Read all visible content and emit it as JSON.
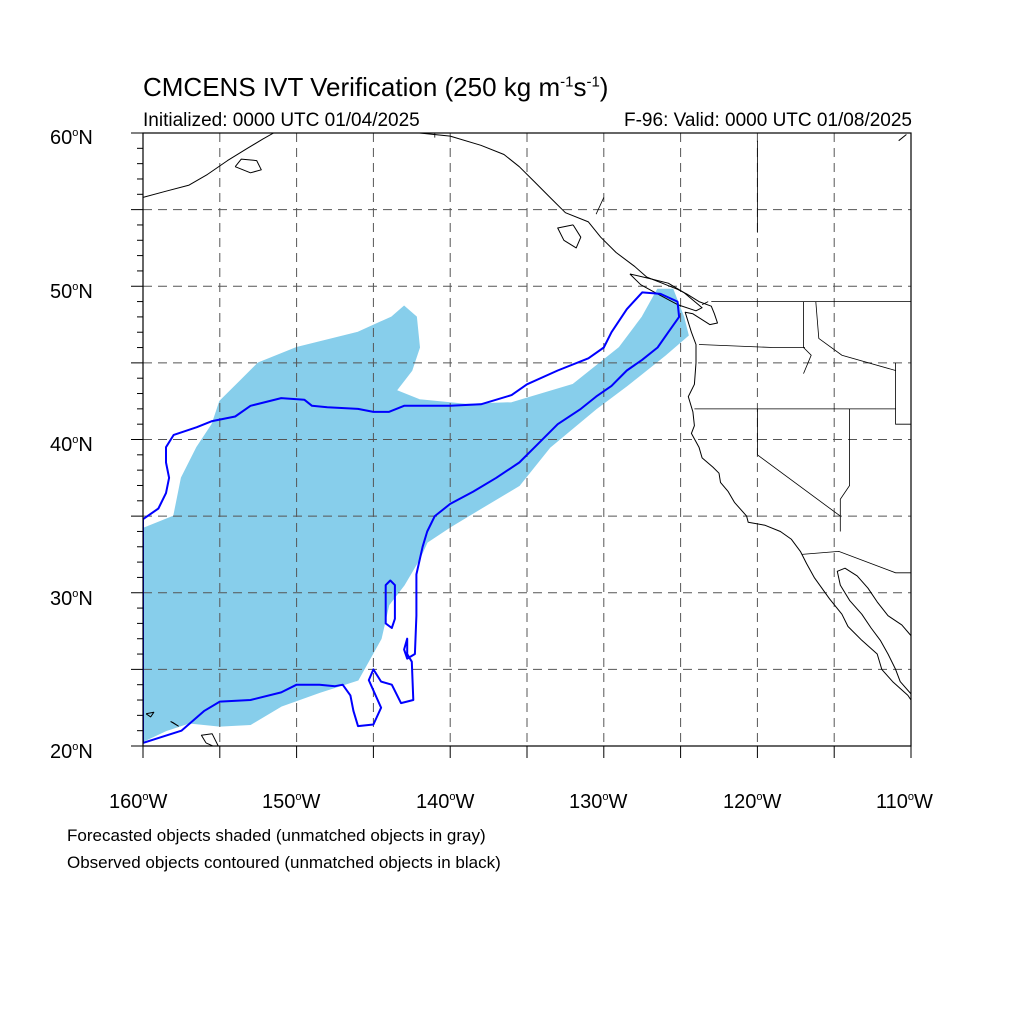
{
  "title": {
    "prefix": "CMCENS IVT Verification (250 kg m",
    "exp1": "-1",
    "mid": "s",
    "exp2": "-1",
    "suffix": ")"
  },
  "initialized": "Initialized: 0000 UTC 01/04/2025",
  "valid": "F-96: Valid: 0000 UTC 01/08/2025",
  "lat_labels": [
    {
      "value": "60",
      "deg": "o",
      "hemi": "N"
    },
    {
      "value": "50",
      "deg": "o",
      "hemi": "N"
    },
    {
      "value": "40",
      "deg": "o",
      "hemi": "N"
    },
    {
      "value": "30",
      "deg": "o",
      "hemi": "N"
    },
    {
      "value": "20",
      "deg": "o",
      "hemi": "N"
    }
  ],
  "lon_labels": [
    {
      "value": "160",
      "deg": "o",
      "hemi": "W"
    },
    {
      "value": "150",
      "deg": "o",
      "hemi": "W"
    },
    {
      "value": "140",
      "deg": "o",
      "hemi": "W"
    },
    {
      "value": "130",
      "deg": "o",
      "hemi": "W"
    },
    {
      "value": "120",
      "deg": "o",
      "hemi": "W"
    },
    {
      "value": "110",
      "deg": "o",
      "hemi": "W"
    }
  ],
  "notes": {
    "forecast": "Forecasted objects shaded (unmatched objects in gray)",
    "observed": "Observed objects contoured (unmatched objects in black)"
  },
  "map_extent": {
    "lon_min": -160,
    "lon_max": -110,
    "lat_min": 20,
    "lat_max": 60
  },
  "colors": {
    "forecast_fill": "#87CEEB",
    "observed_contour": "#0000FF",
    "coastline": "#000000",
    "grid": "#555555"
  },
  "forecast_object": [
    [
      -160,
      20.3
    ],
    [
      -160,
      34.2
    ],
    [
      -158,
      35.0
    ],
    [
      -157.5,
      37.5
    ],
    [
      -156.5,
      39.5
    ],
    [
      -155.5,
      41.0
    ],
    [
      -155,
      42.5
    ],
    [
      -154,
      43.5
    ],
    [
      -152.5,
      45.0
    ],
    [
      -150,
      46.0
    ],
    [
      -148,
      46.5
    ],
    [
      -146,
      47.0
    ],
    [
      -143.8,
      48.0
    ],
    [
      -143,
      48.7
    ],
    [
      -142.2,
      48.0
    ],
    [
      -142,
      46.0
    ],
    [
      -142.5,
      44.5
    ],
    [
      -143.5,
      43.2
    ],
    [
      -142,
      42.6
    ],
    [
      -139,
      42.3
    ],
    [
      -136,
      42.4
    ],
    [
      -132,
      43.6
    ],
    [
      -129,
      46.0
    ],
    [
      -127.5,
      48.0
    ],
    [
      -126.5,
      49.8
    ],
    [
      -125.5,
      49.8
    ],
    [
      -124.8,
      48.0
    ],
    [
      -124.5,
      46.8
    ],
    [
      -126,
      45.5
    ],
    [
      -128.5,
      43.5
    ],
    [
      -130.5,
      42.0
    ],
    [
      -133.5,
      39.5
    ],
    [
      -135.5,
      37.0
    ],
    [
      -138,
      35.5
    ],
    [
      -140,
      34.3
    ],
    [
      -141.5,
      33.3
    ],
    [
      -142,
      32.2
    ],
    [
      -143,
      30.5
    ],
    [
      -144,
      29.2
    ],
    [
      -144.5,
      27.0
    ],
    [
      -146,
      24.3
    ],
    [
      -148.5,
      23.5
    ],
    [
      -151,
      22.6
    ],
    [
      -153,
      21.4
    ],
    [
      -155,
      21.3
    ],
    [
      -157,
      21.5
    ],
    [
      -158.5,
      21.0
    ],
    [
      -160,
      20.3
    ]
  ],
  "observed_objects": [
    [
      [
        -160,
        20.2
      ],
      [
        -160,
        34.8
      ],
      [
        -159,
        35.5
      ],
      [
        -158.5,
        36.5
      ],
      [
        -158.3,
        37.5
      ],
      [
        -158.5,
        38.5
      ],
      [
        -158.5,
        39.5
      ],
      [
        -158.0,
        40.3
      ],
      [
        -156.5,
        40.8
      ],
      [
        -155.5,
        41.2
      ],
      [
        -154,
        41.5
      ],
      [
        -153,
        42.2
      ],
      [
        -151,
        42.7
      ],
      [
        -149.5,
        42.6
      ],
      [
        -149,
        42.2
      ],
      [
        -148,
        42.1
      ],
      [
        -146,
        42.0
      ],
      [
        -145,
        41.8
      ],
      [
        -144,
        41.8
      ],
      [
        -143,
        42.2
      ],
      [
        -140,
        42.2
      ],
      [
        -138,
        42.3
      ],
      [
        -136,
        42.9
      ],
      [
        -135,
        43.6
      ],
      [
        -133,
        44.5
      ],
      [
        -131,
        45.3
      ],
      [
        -130,
        46.0
      ],
      [
        -129.5,
        47.0
      ],
      [
        -128.5,
        48.5
      ],
      [
        -127.5,
        49.6
      ],
      [
        -126.3,
        49.5
      ],
      [
        -125.2,
        49.0
      ],
      [
        -125.1,
        48.0
      ],
      [
        -125.8,
        47.0
      ],
      [
        -126.5,
        46.0
      ],
      [
        -127.5,
        45.2
      ],
      [
        -128.5,
        44.5
      ],
      [
        -129.5,
        43.5
      ],
      [
        -130.5,
        42.8
      ],
      [
        -131.5,
        42.0
      ],
      [
        -133,
        41.0
      ],
      [
        -134.5,
        39.5
      ],
      [
        -135.5,
        38.5
      ],
      [
        -137,
        37.5
      ],
      [
        -138.5,
        36.6
      ],
      [
        -140,
        35.8
      ],
      [
        -141,
        35.0
      ],
      [
        -141.5,
        34.0
      ],
      [
        -141.8,
        33.0
      ],
      [
        -142.2,
        31.2
      ],
      [
        -142.2,
        28.5
      ],
      [
        -142.3,
        26.0
      ],
      [
        -142.8,
        25.7
      ],
      [
        -143.0,
        26.3
      ],
      [
        -142.8,
        27.0
      ],
      [
        -142.8,
        26.0
      ],
      [
        -142.5,
        25.5
      ],
      [
        -142.4,
        23.0
      ],
      [
        -143.2,
        22.8
      ],
      [
        -143.8,
        24.0
      ],
      [
        -144.5,
        24.2
      ],
      [
        -145,
        25.0
      ],
      [
        -145.3,
        24.3
      ],
      [
        -144.5,
        22.5
      ],
      [
        -145,
        21.4
      ],
      [
        -146,
        21.3
      ],
      [
        -146.3,
        22.3
      ],
      [
        -146.5,
        23.3
      ],
      [
        -147,
        24.0
      ],
      [
        -147.5,
        23.9
      ],
      [
        -148.5,
        24.0
      ],
      [
        -150,
        24.0
      ],
      [
        -151,
        23.5
      ],
      [
        -153,
        23.0
      ],
      [
        -155,
        22.9
      ],
      [
        -156,
        22.3
      ],
      [
        -157.5,
        21.0
      ],
      [
        -160,
        20.2
      ]
    ],
    [
      [
        -144.2,
        30.5
      ],
      [
        -144.2,
        28.0
      ],
      [
        -143.8,
        27.7
      ],
      [
        -143.6,
        28.3
      ],
      [
        -143.6,
        30.5
      ],
      [
        -143.9,
        30.8
      ],
      [
        -144.2,
        30.5
      ]
    ]
  ],
  "coastlines": [
    [
      [
        -142,
        60.0
      ],
      [
        -140,
        59.8
      ],
      [
        -138,
        59.2
      ],
      [
        -136.5,
        58.6
      ],
      [
        -135.5,
        57.8
      ],
      [
        -134.5,
        56.8
      ],
      [
        -133.5,
        55.8
      ],
      [
        -132.5,
        54.8
      ],
      [
        -131,
        54.2
      ],
      [
        -130.2,
        53.2
      ],
      [
        -129.2,
        52.2
      ],
      [
        -128,
        51.3
      ],
      [
        -127.2,
        50.6
      ],
      [
        -126.2,
        50.2
      ],
      [
        -125.2,
        49.8
      ],
      [
        -124.6,
        49.5
      ],
      [
        -123.8,
        49.0
      ],
      [
        -123.0,
        48.7
      ],
      [
        -122.8,
        48.2
      ],
      [
        -122.6,
        47.6
      ],
      [
        -123.1,
        47.5
      ],
      [
        -124.2,
        48.2
      ],
      [
        -124.7,
        48.3
      ],
      [
        -124.3,
        47.0
      ],
      [
        -124.0,
        46.2
      ],
      [
        -124.0,
        45.0
      ],
      [
        -124.1,
        43.6
      ],
      [
        -124.5,
        42.8
      ],
      [
        -124.2,
        41.8
      ],
      [
        -124.1,
        40.9
      ],
      [
        -124.3,
        40.4
      ],
      [
        -123.8,
        39.5
      ],
      [
        -123.6,
        38.8
      ],
      [
        -122.9,
        38.2
      ],
      [
        -122.5,
        37.8
      ],
      [
        -122.4,
        37.2
      ],
      [
        -121.9,
        36.6
      ],
      [
        -121.5,
        35.9
      ],
      [
        -120.7,
        35.0
      ],
      [
        -120.6,
        34.6
      ],
      [
        -119.5,
        34.4
      ],
      [
        -118.5,
        34.0
      ],
      [
        -117.8,
        33.5
      ],
      [
        -117.2,
        32.7
      ],
      [
        -116.8,
        31.9
      ],
      [
        -116.3,
        31.0
      ],
      [
        -115.8,
        30.3
      ],
      [
        -115.3,
        29.6
      ],
      [
        -114.5,
        28.6
      ],
      [
        -114.1,
        27.8
      ],
      [
        -113.2,
        26.9
      ],
      [
        -112.2,
        26.0
      ],
      [
        -111.9,
        25.0
      ],
      [
        -111.2,
        24.2
      ],
      [
        -110.2,
        23.3
      ],
      [
        -110,
        23.0
      ]
    ],
    [
      [
        -110,
        27.2
      ],
      [
        -110.6,
        27.9
      ],
      [
        -111.5,
        28.5
      ],
      [
        -112.2,
        29.4
      ],
      [
        -112.8,
        30.3
      ],
      [
        -113.5,
        31.1
      ],
      [
        -114.3,
        31.6
      ],
      [
        -114.8,
        31.4
      ],
      [
        -114.6,
        30.5
      ],
      [
        -114.0,
        29.5
      ],
      [
        -113.2,
        28.6
      ],
      [
        -112.6,
        27.7
      ],
      [
        -112.0,
        26.9
      ],
      [
        -111.5,
        26.0
      ],
      [
        -111.0,
        25.0
      ],
      [
        -110.7,
        24.2
      ],
      [
        -110,
        23.4
      ]
    ],
    [
      [
        -128.3,
        50.8
      ],
      [
        -127.0,
        50.5
      ],
      [
        -125.8,
        50.2
      ],
      [
        -124.8,
        49.6
      ],
      [
        -123.6,
        48.6
      ],
      [
        -124.0,
        48.4
      ],
      [
        -125.2,
        48.8
      ],
      [
        -126.5,
        49.5
      ],
      [
        -127.6,
        50.1
      ],
      [
        -128.3,
        50.8
      ]
    ],
    [
      [
        -132.0,
        54.0
      ],
      [
        -131.5,
        53.2
      ],
      [
        -131.8,
        52.5
      ],
      [
        -132.6,
        53.0
      ],
      [
        -133.0,
        53.8
      ],
      [
        -132.0,
        54.0
      ]
    ],
    [
      [
        -160,
        55.8
      ],
      [
        -158.5,
        56.2
      ],
      [
        -157.0,
        56.6
      ],
      [
        -155.8,
        57.3
      ],
      [
        -154.5,
        58.2
      ],
      [
        -153.2,
        59.0
      ],
      [
        -152.2,
        59.6
      ],
      [
        -151.5,
        60.0
      ]
    ],
    [
      [
        -154.0,
        57.8
      ],
      [
        -153.0,
        57.4
      ],
      [
        -152.3,
        57.6
      ],
      [
        -152.6,
        58.2
      ],
      [
        -153.6,
        58.3
      ],
      [
        -154.0,
        57.8
      ]
    ],
    [
      [
        -146,
        60.0
      ],
      [
        -145.0,
        60.3
      ]
    ],
    [
      [
        -110.8,
        59.5
      ],
      [
        -110.3,
        59.9
      ]
    ],
    [
      [
        -155.9,
        20.2
      ],
      [
        -155.0,
        19.8
      ],
      [
        -155.5,
        20.8
      ],
      [
        -156.2,
        20.7
      ],
      [
        -155.9,
        20.2
      ]
    ],
    [
      [
        -159.8,
        22.1
      ],
      [
        -159.3,
        22.2
      ],
      [
        -159.5,
        21.9
      ],
      [
        -159.8,
        22.1
      ]
    ],
    [
      [
        -158.2,
        21.6
      ],
      [
        -157.7,
        21.3
      ],
      [
        -158.0,
        21.5
      ],
      [
        -158.2,
        21.6
      ]
    ]
  ],
  "borders": [
    [
      [
        -123.0,
        49.0
      ],
      [
        -110,
        49.0
      ]
    ],
    [
      [
        -141,
        60.0
      ],
      [
        -141,
        59.7
      ]
    ],
    [
      [
        -130.0,
        55.8
      ],
      [
        -130.5,
        54.7
      ]
    ],
    [
      [
        -117.1,
        32.5
      ],
      [
        -114.7,
        32.7
      ],
      [
        -111.0,
        31.3
      ],
      [
        -110,
        31.3
      ]
    ],
    [
      [
        -124.1,
        42.0
      ],
      [
        -120.0,
        42.0
      ],
      [
        -111.0,
        42.0
      ]
    ],
    [
      [
        -120.0,
        42.0
      ],
      [
        -120.0,
        39.0
      ],
      [
        -114.6,
        35.0
      ],
      [
        -114.6,
        34.0
      ]
    ],
    [
      [
        -117.0,
        49.0
      ],
      [
        -117.0,
        46.0
      ],
      [
        -116.5,
        45.5
      ],
      [
        -117.0,
        44.3
      ]
    ],
    [
      [
        -116.2,
        49.0
      ],
      [
        -116.0,
        46.6
      ],
      [
        -114.5,
        45.5
      ],
      [
        -111.0,
        44.5
      ]
    ],
    [
      [
        -123.8,
        46.2
      ],
      [
        -119.0,
        46.0
      ],
      [
        -116.9,
        46.0
      ]
    ],
    [
      [
        -114.0,
        42.0
      ],
      [
        -114.0,
        37.0
      ],
      [
        -114.6,
        36.1
      ],
      [
        -114.6,
        35.0
      ]
    ],
    [
      [
        -111.0,
        45.0
      ],
      [
        -111.0,
        41.0
      ],
      [
        -110,
        41.0
      ]
    ],
    [
      [
        -120.0,
        59.5
      ],
      [
        -120.0,
        55.0
      ],
      [
        -120.0,
        53.5
      ]
    ],
    [
      [
        -123.6,
        48.8
      ],
      [
        -123.2,
        49.0
      ]
    ]
  ]
}
